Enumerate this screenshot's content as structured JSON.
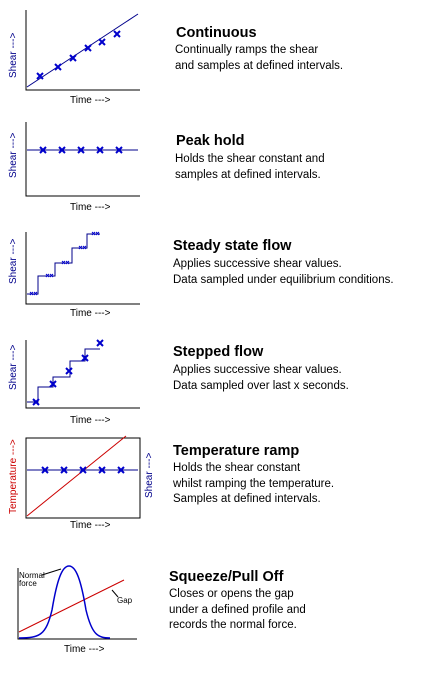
{
  "panels": [
    {
      "title": "Continuous",
      "lines": [
        "Continually ramps the shear",
        "and samples at defined intervals."
      ],
      "y_label": "Shear --->",
      "x_label": "Time --->"
    },
    {
      "title": "Peak hold",
      "lines": [
        "Holds the shear constant and",
        "samples at defined intervals."
      ],
      "y_label": "Shear --->",
      "x_label": "Time --->"
    },
    {
      "title": "Steady state flow",
      "lines": [
        "Applies successive shear values.",
        "Data sampled under equilibrium conditions."
      ],
      "y_label": "Shear --->",
      "x_label": "Time --->"
    },
    {
      "title": "Stepped flow",
      "lines": [
        "Applies successive shear values.",
        "Data sampled over last x seconds."
      ],
      "y_label": "Shear --->",
      "x_label": "Time --->"
    },
    {
      "title": "Temperature ramp",
      "lines": [
        "Holds the shear constant",
        "whilst ramping the temperature.",
        "Samples at defined intervals."
      ],
      "y_label": "Temperature --->",
      "y2_label": "Shear --->",
      "x_label": "Time --->"
    },
    {
      "title": "Squeeze/Pull Off",
      "lines": [
        "Closes or opens the gap",
        "under a defined profile and",
        "records the normal force."
      ],
      "annotations": {
        "normal_force_1": "Normal",
        "normal_force_2": "force",
        "gap": "Gap"
      },
      "x_label": "Time --->"
    }
  ],
  "colors": {
    "shear": "#00008b",
    "temperature": "#cc0000",
    "marker": "#0000cc"
  }
}
